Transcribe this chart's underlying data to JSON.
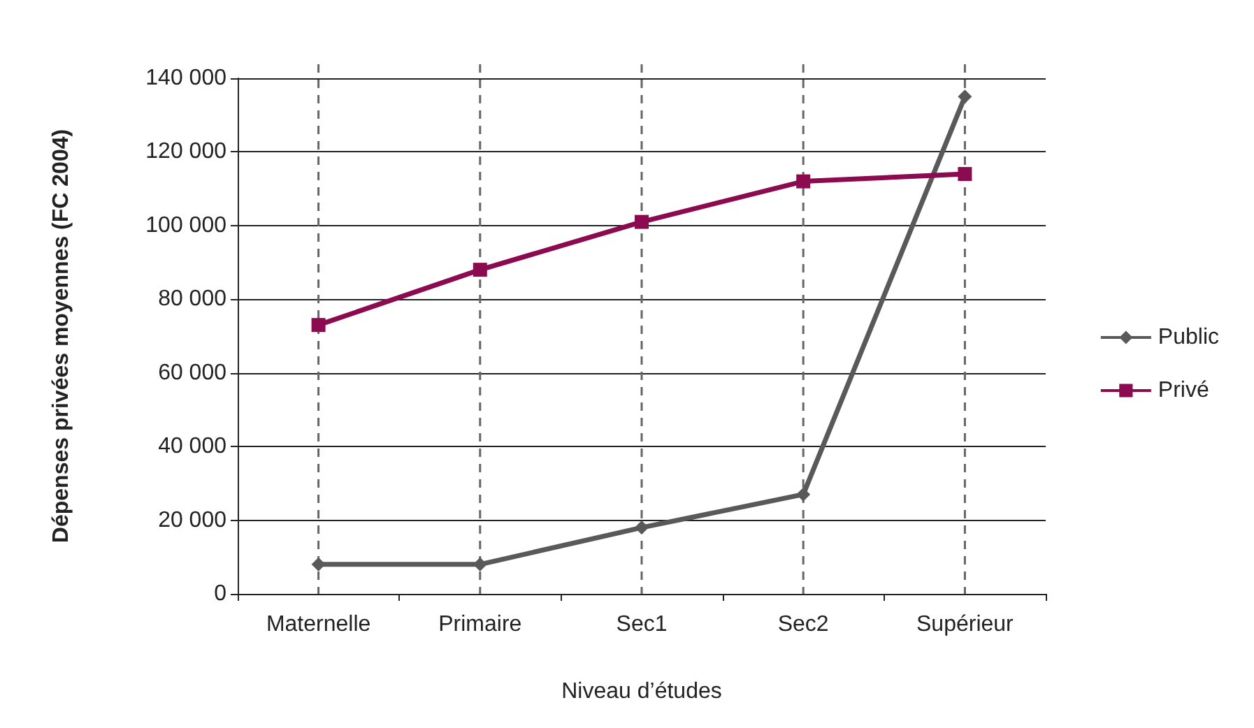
{
  "chart_data": {
    "type": "line",
    "xlabel": "Niveau d’études",
    "ylabel": "Dépenses privées moyennes (FC 2004)",
    "categories": [
      "Maternelle",
      "Primaire",
      "Sec1",
      "Sec2",
      "Supérieur"
    ],
    "series": [
      {
        "name": "Public",
        "color": "#595959",
        "marker": "diamond",
        "values": [
          8000,
          8000,
          18000,
          27000,
          135000
        ]
      },
      {
        "name": "Privé",
        "color": "#8b0a50",
        "marker": "square",
        "values": [
          73000,
          88000,
          101000,
          112000,
          114000
        ]
      }
    ],
    "ylim": [
      0,
      140000
    ],
    "yticks": [
      0,
      20000,
      40000,
      60000,
      80000,
      100000,
      120000,
      140000
    ],
    "grid": true,
    "legend": "right",
    "line_style": "solid"
  }
}
